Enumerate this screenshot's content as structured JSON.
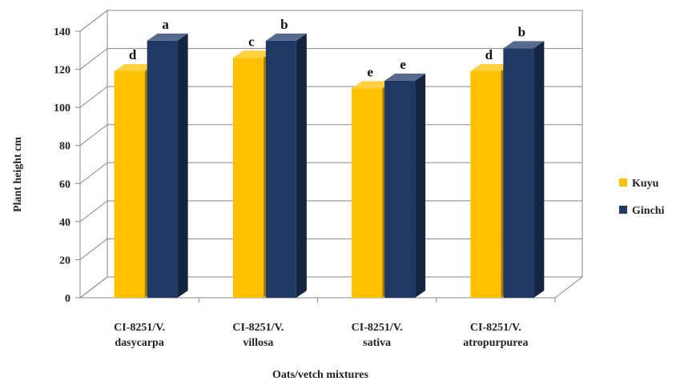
{
  "chart_data": {
    "type": "bar",
    "title": "",
    "xlabel": "Oats/vetch mixtures",
    "ylabel": "Plant height cm",
    "ylim": [
      0,
      140
    ],
    "yticks": [
      0,
      20,
      40,
      60,
      80,
      100,
      120,
      140
    ],
    "grid": true,
    "legend_position": "right",
    "categories": [
      [
        "CI-8251/V.",
        "dasycarpa"
      ],
      [
        "CI-8251/V.",
        "villosa"
      ],
      [
        "CI-8251/V.",
        "sativa"
      ],
      [
        "CI-8251/V.",
        "atropurpurea"
      ]
    ],
    "series": [
      {
        "name": "Kuyu",
        "color": "#FFC000",
        "values": [
          119,
          126,
          110,
          119
        ],
        "letters": [
          "d",
          "c",
          "e",
          "d"
        ]
      },
      {
        "name": "Ginchi",
        "color": "#1F3864",
        "values": [
          135,
          135,
          114,
          131
        ],
        "letters": [
          "a",
          "b",
          "e",
          "b"
        ]
      }
    ]
  }
}
